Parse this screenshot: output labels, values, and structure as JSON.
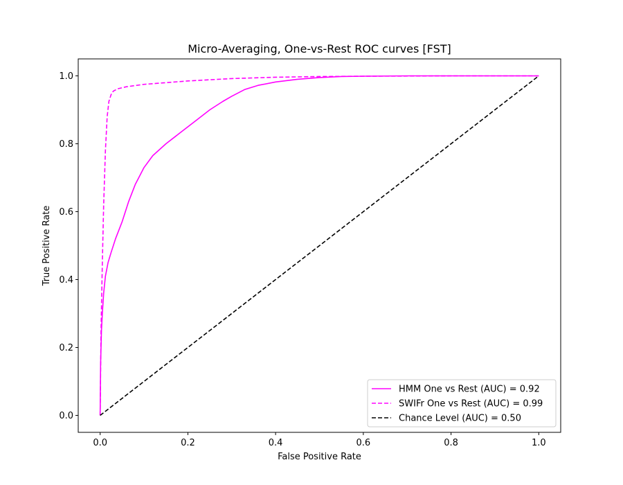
{
  "chart_data": {
    "type": "line",
    "title": "Micro-Averaging, One-vs-Rest ROC curves [FST]",
    "xlabel": "False Positive Rate",
    "ylabel": "True Positive Rate",
    "xlim": [
      -0.05,
      1.05
    ],
    "ylim": [
      -0.05,
      1.05
    ],
    "xticks": [
      "0.0",
      "0.2",
      "0.4",
      "0.6",
      "0.8",
      "1.0"
    ],
    "yticks": [
      "0.0",
      "0.2",
      "0.4",
      "0.6",
      "0.8",
      "1.0"
    ],
    "grid": false,
    "legend_position": "lower-right",
    "series": [
      {
        "name": "HMM One vs Rest (AUC) = 0.92",
        "color": "#ff00ff",
        "dash": "solid",
        "x": [
          0,
          0.001,
          0.003,
          0.005,
          0.008,
          0.012,
          0.018,
          0.025,
          0.035,
          0.05,
          0.065,
          0.08,
          0.1,
          0.12,
          0.15,
          0.18,
          0.2,
          0.22,
          0.25,
          0.28,
          0.3,
          0.33,
          0.36,
          0.4,
          0.45,
          0.5,
          0.55,
          0.6,
          0.7,
          0.8,
          1.0
        ],
        "y": [
          0,
          0.15,
          0.25,
          0.3,
          0.36,
          0.41,
          0.45,
          0.48,
          0.52,
          0.57,
          0.63,
          0.68,
          0.73,
          0.765,
          0.8,
          0.83,
          0.85,
          0.87,
          0.9,
          0.925,
          0.94,
          0.96,
          0.972,
          0.982,
          0.99,
          0.995,
          0.998,
          0.999,
          1.0,
          1.0,
          1.0
        ]
      },
      {
        "name": "SWIFr One vs Rest (AUC) = 0.99",
        "color": "#ff00ff",
        "dash": "dashed",
        "x": [
          0,
          0.002,
          0.005,
          0.008,
          0.012,
          0.016,
          0.02,
          0.025,
          0.03,
          0.04,
          0.06,
          0.1,
          0.15,
          0.2,
          0.3,
          0.4,
          0.5,
          0.6,
          0.8,
          1.0
        ],
        "y": [
          0,
          0.25,
          0.45,
          0.62,
          0.78,
          0.88,
          0.925,
          0.945,
          0.955,
          0.962,
          0.968,
          0.975,
          0.98,
          0.985,
          0.992,
          0.996,
          0.998,
          0.999,
          1.0,
          1.0
        ]
      },
      {
        "name": "Chance Level (AUC) = 0.50",
        "color": "#000000",
        "dash": "dashed",
        "x": [
          0,
          1
        ],
        "y": [
          0,
          1
        ]
      }
    ]
  }
}
